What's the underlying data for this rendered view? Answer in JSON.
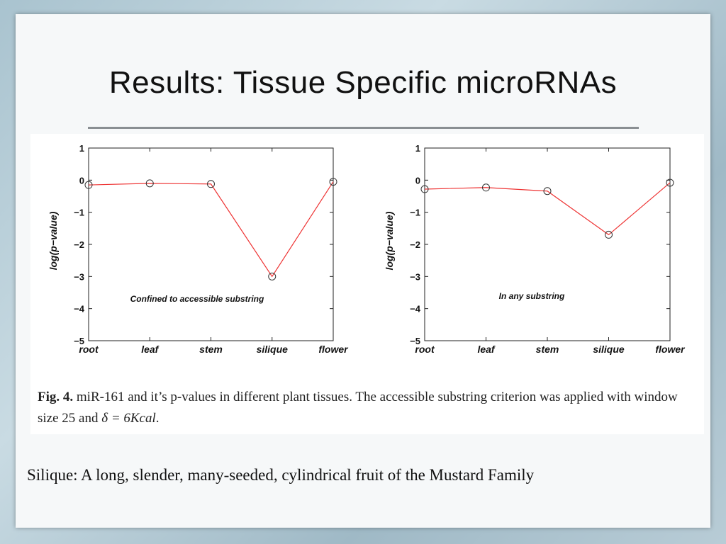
{
  "slide": {
    "title": "Results: Tissue Specific microRNAs",
    "footnote": "Silique: A long, slender, many-seeded, cylindrical fruit of the Mustard Family"
  },
  "caption": {
    "label": "Fig. 4.",
    "text1": " miR-161 and it’s p-values in different plant tissues. The accessible substring criterion was applied with window size 25 and ",
    "math": "δ = 6Kcal",
    "text2": "."
  },
  "colors": {
    "line": "#ee3333",
    "marker": "#333333",
    "axis": "#222222"
  },
  "chart_data": [
    {
      "type": "line",
      "categories": [
        "root",
        "leaf",
        "stem",
        "silique",
        "flower"
      ],
      "series": [
        {
          "values": [
            -0.15,
            -0.1,
            -0.12,
            -3.0,
            -0.05
          ]
        }
      ],
      "ylabel": "log(p−value)",
      "ylim": [
        -5,
        1
      ],
      "yticks": [
        "1",
        "0",
        "−1",
        "−2",
        "−3",
        "−4",
        "−5"
      ],
      "annotation": "Confined to accessible substring",
      "grid": false
    },
    {
      "type": "line",
      "categories": [
        "root",
        "leaf",
        "stem",
        "silique",
        "flower"
      ],
      "series": [
        {
          "values": [
            -0.28,
            -0.23,
            -0.34,
            -1.7,
            -0.08
          ]
        }
      ],
      "ylabel": "log(p−value)",
      "ylim": [
        -5,
        1
      ],
      "yticks": [
        "1",
        "0",
        "−1",
        "−2",
        "−3",
        "−4",
        "−5"
      ],
      "annotation": "In any substring",
      "grid": false
    }
  ]
}
